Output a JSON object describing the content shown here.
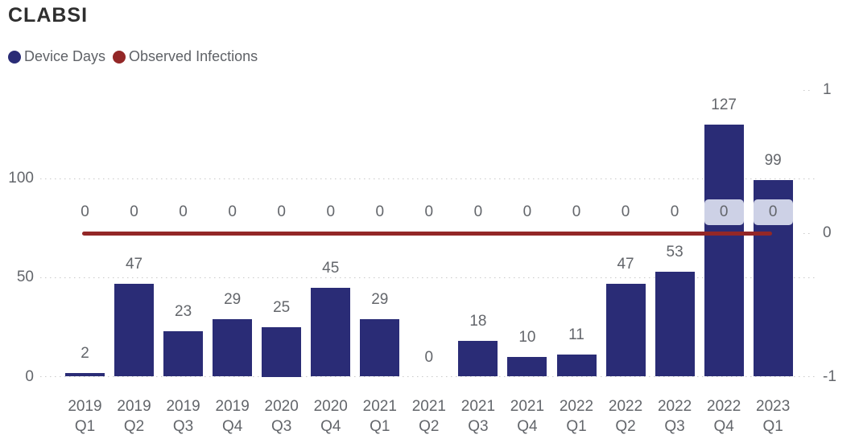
{
  "title": "CLABSI",
  "legend": {
    "items": [
      {
        "label": "Device Days",
        "color": "#2a2c76"
      },
      {
        "label": "Observed Infections",
        "color": "#932727"
      }
    ]
  },
  "colors": {
    "bar": "#2a2c76",
    "line": "#932727",
    "label_text": "#63666b",
    "label_band_bg": "#cdd1e6",
    "grid": "#c9c9c9",
    "title_text": "#2f2f2f",
    "background": "#ffffff"
  },
  "chart_data": {
    "type": "bar",
    "subtype": "column-line-combo",
    "title": "CLABSI",
    "categories": [
      "2019 Q1",
      "2019 Q2",
      "2019 Q3",
      "2019 Q4",
      "2020 Q3",
      "2020 Q4",
      "2021 Q1",
      "2021 Q2",
      "2021 Q3",
      "2021 Q4",
      "2022 Q1",
      "2022 Q2",
      "2022 Q3",
      "2022 Q4",
      "2023 Q1"
    ],
    "series": [
      {
        "name": "Device Days",
        "type": "bar",
        "color": "#2a2c76",
        "values": [
          2,
          47,
          23,
          29,
          25,
          45,
          29,
          0,
          18,
          10,
          11,
          47,
          53,
          127,
          99
        ]
      },
      {
        "name": "Observed Infections",
        "type": "line",
        "color": "#932727",
        "values": [
          0,
          0,
          0,
          0,
          0,
          0,
          0,
          0,
          0,
          0,
          0,
          0,
          0,
          0,
          0
        ]
      }
    ],
    "left_axis": {
      "ticks": [
        "0",
        "50",
        "100"
      ],
      "tick_values": [
        0,
        50,
        100
      ],
      "range": [
        0,
        146
      ]
    },
    "right_axis": {
      "ticks": [
        "-1",
        "0",
        "1"
      ],
      "tick_values": [
        -1,
        0,
        1
      ],
      "range": [
        -1,
        1
      ]
    },
    "grid": "dotted-horizontal",
    "legend_position": "top-left",
    "data_labels": true
  }
}
